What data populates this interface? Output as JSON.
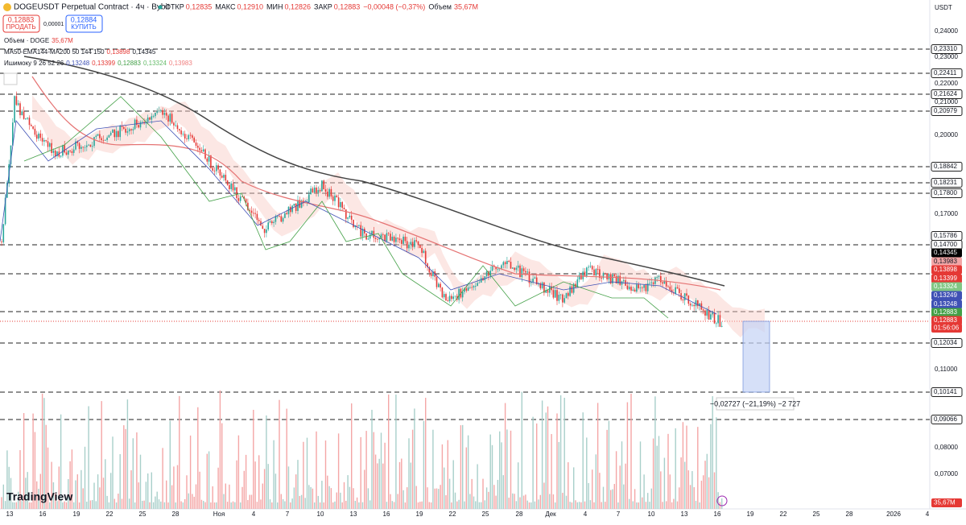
{
  "header": {
    "symbol": "DOGEUSDT Perpetual Contract · 4ч · Bybit",
    "ohlc": [
      {
        "label": "ОТКР",
        "value": "0,12835"
      },
      {
        "label": "МАКС",
        "value": "0,12910"
      },
      {
        "label": "МИН",
        "value": "0,12826"
      },
      {
        "label": "ЗАКР",
        "value": "0,12883"
      }
    ],
    "change": "−0,00048 (−0,37%)",
    "volume_label": "Объем",
    "volume": "35,67M"
  },
  "trade": {
    "sell_price": "0,12883",
    "sell_label": "ПРОДАТЬ",
    "spread": "0,00001",
    "buy_price": "0,12884",
    "buy_label": "КУПИТЬ"
  },
  "indicators": [
    {
      "name": "Объем · DOGE",
      "values": [
        "35,67M"
      ]
    },
    {
      "name": "MA50-EMA144-MA200 50 144 150",
      "values": [
        "0,13898",
        "0,14345"
      ]
    },
    {
      "name": "Ишимоку 9 26 52 26",
      "values": [
        "0,13248",
        "0,13399",
        "0,12883",
        "0,13324",
        "0,13983"
      ]
    }
  ],
  "currency": "USDT",
  "price_axis": [
    "0,24000",
    "0,23000",
    "0,22000",
    "0,21000",
    "0,20000",
    "0,17000",
    "0,11000",
    "0,08000",
    "0,07000"
  ],
  "level_labels": [
    "0,23310",
    "0,22411",
    "0,21624",
    "0,20979",
    "0,18842",
    "0,18231",
    "0,17800",
    "0,15786",
    "0,14700",
    "0,12034",
    "0,10141",
    "0,09066"
  ],
  "indicator_labels": [
    "0,14345",
    "0,13983",
    "0,13898",
    "0,13399",
    "0,13324",
    "0,13249",
    "0,13248",
    "0,12883",
    "0,12883"
  ],
  "countdown": "01:56:06",
  "volume_axis_label": "35,67M",
  "measure": "−0,02727 (−21,19%) −2 727",
  "time_axis": [
    "13",
    "16",
    "19",
    "22",
    "25",
    "28",
    "Ноя",
    "4",
    "7",
    "10",
    "13",
    "16",
    "19",
    "22",
    "25",
    "28",
    "Дек",
    "4",
    "7",
    "10",
    "13",
    "16",
    "19",
    "22",
    "25",
    "28",
    "2026",
    "4"
  ],
  "logo": "TradingView"
}
